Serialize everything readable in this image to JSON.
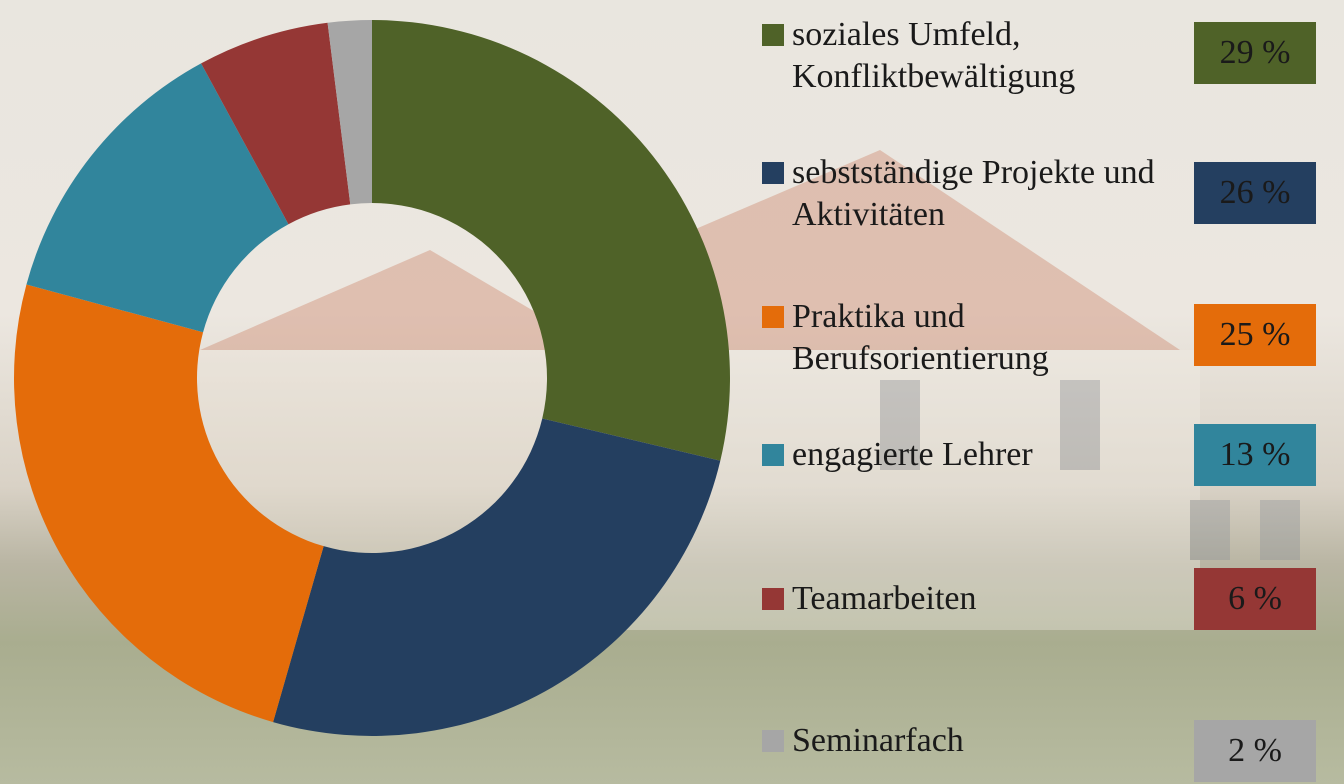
{
  "chart_data": {
    "type": "donut",
    "categories": [
      "soziales Umfeld, Konfliktbewältigung",
      "sebstständige Projekte und Aktivitäten",
      "Praktika und Berufsorientierung",
      "engagierte Lehrer",
      "Teamarbeiten",
      "Seminarfach"
    ],
    "values": [
      29,
      26,
      25,
      13,
      6,
      2
    ],
    "value_labels": [
      "29 %",
      "26 %",
      "25 %",
      "13 %",
      "6 %",
      "2 %"
    ],
    "colors": [
      "#4f6228",
      "#243f60",
      "#e46c0a",
      "#31859c",
      "#953735",
      "#a6a6a6"
    ],
    "legend": "right"
  }
}
